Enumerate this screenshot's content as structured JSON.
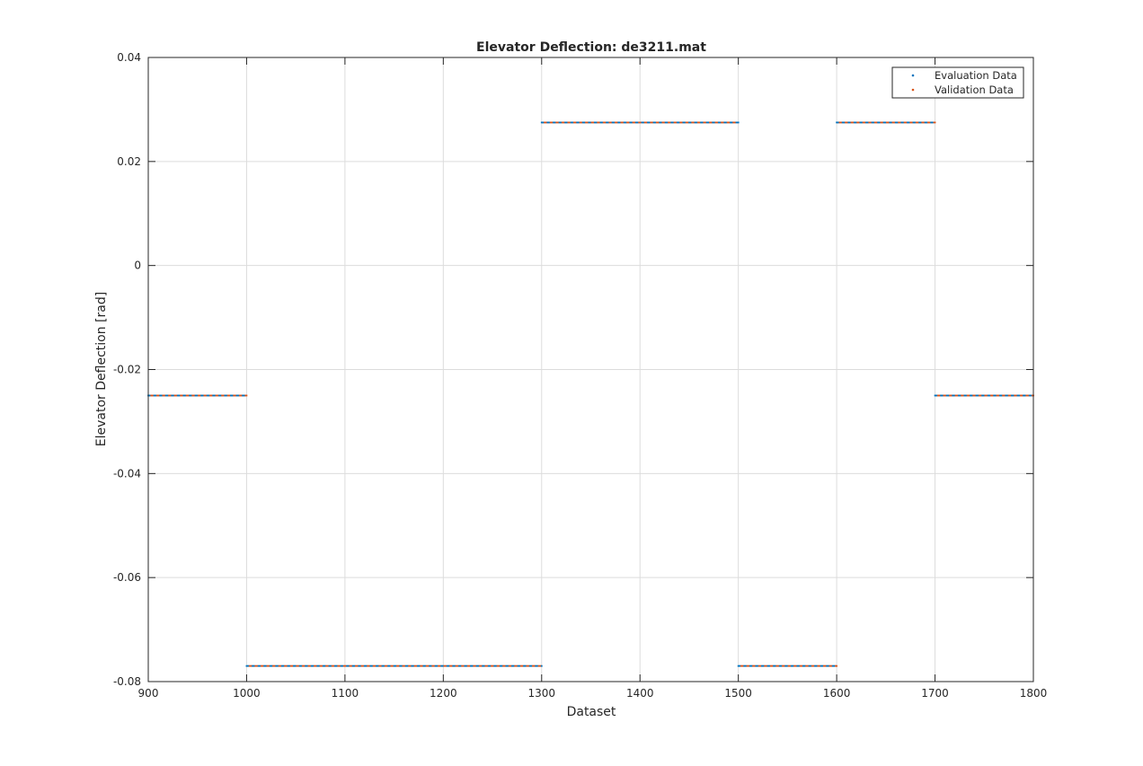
{
  "chart_data": {
    "type": "scatter",
    "title": "Elevator Deflection: de3211.mat",
    "xlabel": "Dataset",
    "ylabel": "Elevator Deflection [rad]",
    "xlim": [
      900,
      1800
    ],
    "ylim": [
      -0.08,
      0.04
    ],
    "grid": true,
    "legend_position": "top-right",
    "xticks": [
      900,
      1000,
      1100,
      1200,
      1300,
      1400,
      1500,
      1600,
      1700,
      1800
    ],
    "xtick_labels": [
      "900",
      "1000",
      "1100",
      "1200",
      "1300",
      "1400",
      "1500",
      "1600",
      "1700",
      "1800"
    ],
    "yticks": [
      0.04,
      0.02,
      0,
      -0.02,
      -0.04,
      -0.06,
      -0.08
    ],
    "ytick_labels": [
      "0.04",
      "0.02",
      "0",
      "-0.02",
      "-0.04",
      "-0.06",
      "-0.08"
    ],
    "segments": [
      {
        "x_start": 900,
        "x_end": 1000,
        "y": -0.025
      },
      {
        "x_start": 1000,
        "x_end": 1300,
        "y": -0.077
      },
      {
        "x_start": 1300,
        "x_end": 1500,
        "y": 0.0275
      },
      {
        "x_start": 1500,
        "x_end": 1600,
        "y": -0.077
      },
      {
        "x_start": 1600,
        "x_end": 1700,
        "y": 0.0275
      },
      {
        "x_start": 1700,
        "x_end": 1800,
        "y": -0.025
      }
    ],
    "series": [
      {
        "name": "Evaluation Data",
        "color": "#0072BD"
      },
      {
        "name": "Validation Data",
        "color": "#D95319"
      }
    ]
  }
}
